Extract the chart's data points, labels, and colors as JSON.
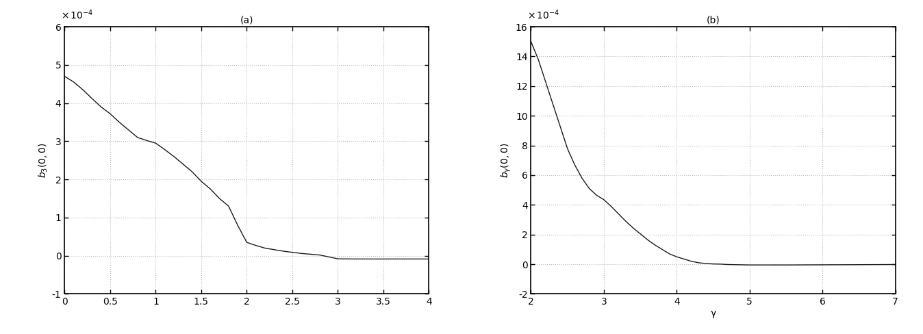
{
  "subplot_a": {
    "title": "(a)",
    "xlabel": "",
    "ylabel": "b_3(0,0)",
    "xlim": [
      0,
      4
    ],
    "ylim": [
      -0.0001,
      0.0006
    ],
    "yticks": [
      -0.0001,
      0,
      0.0001,
      0.0002,
      0.0003,
      0.0004,
      0.0005,
      0.0006
    ],
    "ytick_labels": [
      "-1",
      "0",
      "1",
      "2",
      "3",
      "4",
      "5",
      "6"
    ],
    "xticks": [
      0,
      0.5,
      1.0,
      1.5,
      2.0,
      2.5,
      3.0,
      3.5,
      4.0
    ],
    "xtick_labels": [
      "0",
      "0.5",
      "1",
      "1.5",
      "2",
      "2.5",
      "3",
      "3.5",
      "4"
    ],
    "x": [
      0,
      0.1,
      0.2,
      0.3,
      0.4,
      0.5,
      0.6,
      0.7,
      0.8,
      0.9,
      1.0,
      1.1,
      1.2,
      1.3,
      1.4,
      1.5,
      1.6,
      1.7,
      1.8,
      1.9,
      2.0,
      2.1,
      2.2,
      2.4,
      2.6,
      2.8,
      3.0,
      3.2,
      3.4,
      3.6,
      3.8,
      4.0
    ],
    "y": [
      0.00047,
      0.000455,
      0.000435,
      0.000412,
      0.00039,
      0.000372,
      0.00035,
      0.00033,
      0.00031,
      0.000302,
      0.000295,
      0.000278,
      0.00026,
      0.00024,
      0.00022,
      0.000195,
      0.000175,
      0.00015,
      0.00013,
      8e-05,
      3.5e-05,
      2.7e-05,
      2e-05,
      1.2e-05,
      6e-06,
      2e-06,
      -8e-06,
      -8.5e-06,
      -8.5e-06,
      -8.5e-06,
      -8.5e-06,
      -8.5e-06
    ],
    "line_color": "#1a1a1a"
  },
  "subplot_b": {
    "title": "(b)",
    "xlabel": "γ",
    "ylabel": "b_γ(0,0)",
    "xlim": [
      2,
      7
    ],
    "ylim": [
      -0.0002,
      0.0016
    ],
    "yticks": [
      -0.0002,
      0,
      0.0002,
      0.0004,
      0.0006,
      0.0008,
      0.001,
      0.0012,
      0.0014,
      0.0016
    ],
    "ytick_labels": [
      "-2",
      "0",
      "2",
      "4",
      "6",
      "8",
      "10",
      "12",
      "14",
      "16"
    ],
    "xticks": [
      2,
      3,
      4,
      5,
      6,
      7
    ],
    "xtick_labels": [
      "2",
      "3",
      "4",
      "5",
      "6",
      "7"
    ],
    "x": [
      2.0,
      2.1,
      2.2,
      2.3,
      2.4,
      2.5,
      2.6,
      2.7,
      2.8,
      2.9,
      3.0,
      3.1,
      3.2,
      3.3,
      3.4,
      3.5,
      3.6,
      3.7,
      3.8,
      3.9,
      4.0,
      4.1,
      4.2,
      4.3,
      4.4,
      4.5,
      4.6,
      4.7,
      4.8,
      4.9,
      5.0,
      5.2,
      5.5,
      6.0,
      6.5,
      7.0
    ],
    "y": [
      0.0015,
      0.00138,
      0.00123,
      0.00108,
      0.00093,
      0.00078,
      0.00067,
      0.00058,
      0.00051,
      0.000465,
      0.000435,
      0.00039,
      0.00034,
      0.00029,
      0.000245,
      0.000205,
      0.000165,
      0.00013,
      0.0001,
      7e-05,
      5e-05,
      3.5e-05,
      2e-05,
      1e-05,
      5e-06,
      2e-06,
      1e-06,
      -2e-06,
      -3e-06,
      -4e-06,
      -5e-06,
      -5e-06,
      -5e-06,
      -4e-06,
      -3e-06,
      -2e-06
    ],
    "line_color": "#1a1a1a"
  },
  "background_color": "#ffffff",
  "grid_color": "#aaaaaa",
  "figure_facecolor": "#ffffff",
  "font_size": 10,
  "title_fontsize": 10
}
